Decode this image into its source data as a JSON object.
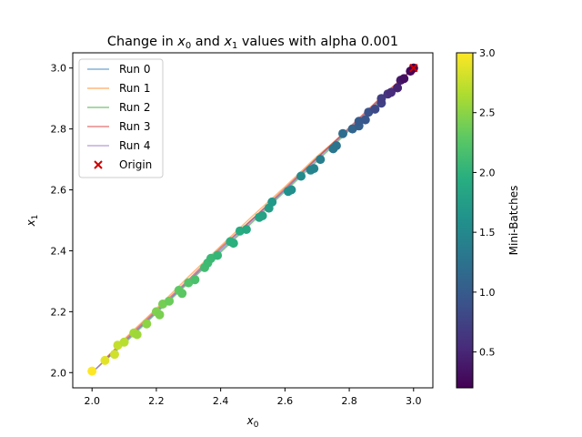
{
  "chart_data": {
    "type": "scatter",
    "title_prefix": "Change in ",
    "title_var1": "x",
    "title_var1_sub": "0",
    "title_mid": " and ",
    "title_var2": "x",
    "title_var2_sub": "1",
    "title_suffix": " values with alpha 0.001",
    "xlabel": "x",
    "xlabel_sub": "0",
    "ylabel": "x",
    "ylabel_sub": "1",
    "xlim": [
      1.94,
      3.06
    ],
    "ylim": [
      1.95,
      3.05
    ],
    "xticks": [
      "2.0",
      "2.2",
      "2.4",
      "2.6",
      "2.8",
      "3.0"
    ],
    "yticks": [
      "2.0",
      "2.2",
      "2.4",
      "2.6",
      "2.8",
      "3.0"
    ],
    "grid": false,
    "legend_position": "top-left",
    "series": [
      {
        "name": "Run 0",
        "color": "#1f77b4",
        "x": [
          3.0,
          2.9,
          2.8,
          2.7,
          2.6,
          2.5,
          2.4,
          2.3,
          2.2,
          2.1,
          2.0
        ],
        "y": [
          3.0,
          2.9,
          2.8,
          2.705,
          2.6,
          2.505,
          2.405,
          2.3,
          2.2,
          2.1,
          2.0
        ]
      },
      {
        "name": "Run 1",
        "color": "#ff7f0e",
        "x": [
          3.0,
          2.9,
          2.8,
          2.7,
          2.6,
          2.5,
          2.4,
          2.3,
          2.2,
          2.1,
          2.02
        ],
        "y": [
          3.0,
          2.905,
          2.8,
          2.71,
          2.61,
          2.515,
          2.415,
          2.315,
          2.21,
          2.11,
          2.02
        ]
      },
      {
        "name": "Run 2",
        "color": "#2ca02c",
        "x": [
          3.0,
          2.9,
          2.8,
          2.7,
          2.6,
          2.5,
          2.4,
          2.3,
          2.2,
          2.1,
          2.03
        ],
        "y": [
          3.0,
          2.895,
          2.795,
          2.695,
          2.595,
          2.495,
          2.395,
          2.295,
          2.195,
          2.095,
          2.03
        ]
      },
      {
        "name": "Run 3",
        "color": "#d62728",
        "x": [
          3.0,
          2.9,
          2.8,
          2.7,
          2.6,
          2.5,
          2.4,
          2.3,
          2.2,
          2.1,
          2.04
        ],
        "y": [
          3.0,
          2.905,
          2.805,
          2.705,
          2.605,
          2.505,
          2.41,
          2.305,
          2.205,
          2.105,
          2.045
        ]
      },
      {
        "name": "Run 4",
        "color": "#9467bd",
        "x": [
          3.0,
          2.9,
          2.8,
          2.7,
          2.6,
          2.5,
          2.4,
          2.3,
          2.2,
          2.1,
          2.01
        ],
        "y": [
          3.0,
          2.9,
          2.8,
          2.7,
          2.6,
          2.5,
          2.4,
          2.3,
          2.2,
          2.1,
          2.01
        ]
      }
    ],
    "scatter_points": [
      [
        2.0,
        2.005,
        3.0
      ],
      [
        2.04,
        2.04,
        2.88
      ],
      [
        2.07,
        2.06,
        2.8
      ],
      [
        2.08,
        2.09,
        2.75
      ],
      [
        2.1,
        2.1,
        2.7
      ],
      [
        2.13,
        2.13,
        2.6
      ],
      [
        2.14,
        2.125,
        2.58
      ],
      [
        2.17,
        2.16,
        2.5
      ],
      [
        2.2,
        2.2,
        2.45
      ],
      [
        2.21,
        2.19,
        2.42
      ],
      [
        2.22,
        2.225,
        2.4
      ],
      [
        2.24,
        2.235,
        2.35
      ],
      [
        2.27,
        2.27,
        2.3
      ],
      [
        2.28,
        2.26,
        2.28
      ],
      [
        2.3,
        2.295,
        2.22
      ],
      [
        2.32,
        2.305,
        2.18
      ],
      [
        2.35,
        2.345,
        2.12
      ],
      [
        2.36,
        2.36,
        2.1
      ],
      [
        2.37,
        2.375,
        2.08
      ],
      [
        2.39,
        2.385,
        2.04
      ],
      [
        2.43,
        2.43,
        1.98
      ],
      [
        2.44,
        2.425,
        1.96
      ],
      [
        2.46,
        2.465,
        1.92
      ],
      [
        2.48,
        2.47,
        1.88
      ],
      [
        2.52,
        2.51,
        1.82
      ],
      [
        2.53,
        2.515,
        1.8
      ],
      [
        2.55,
        2.54,
        1.74
      ],
      [
        2.56,
        2.56,
        1.7
      ],
      [
        2.61,
        2.595,
        1.6
      ],
      [
        2.62,
        2.6,
        1.58
      ],
      [
        2.65,
        2.645,
        1.52
      ],
      [
        2.68,
        2.665,
        1.46
      ],
      [
        2.69,
        2.67,
        1.44
      ],
      [
        2.71,
        2.7,
        1.38
      ],
      [
        2.75,
        2.735,
        1.3
      ],
      [
        2.76,
        2.745,
        1.26
      ],
      [
        2.78,
        2.785,
        1.2
      ],
      [
        2.81,
        2.8,
        1.12
      ],
      [
        2.83,
        2.81,
        1.05
      ],
      [
        2.83,
        2.825,
        1.0
      ],
      [
        2.85,
        2.83,
        0.96
      ],
      [
        2.86,
        2.855,
        0.9
      ],
      [
        2.88,
        2.865,
        0.82
      ],
      [
        2.9,
        2.885,
        0.75
      ],
      [
        2.9,
        2.9,
        0.7
      ],
      [
        2.92,
        2.915,
        0.62
      ],
      [
        2.93,
        2.92,
        0.55
      ],
      [
        2.95,
        2.935,
        0.48
      ],
      [
        2.96,
        2.96,
        0.4
      ],
      [
        2.97,
        2.965,
        0.32
      ],
      [
        2.99,
        2.99,
        0.25
      ],
      [
        3.0,
        3.0,
        0.2
      ]
    ],
    "origin": {
      "name": "Origin",
      "x": 3.0,
      "y": 3.0,
      "color": "#d00000"
    },
    "colorbar": {
      "label": "Mini-Batches",
      "min": 0.2,
      "max": 3.0,
      "colormap": "viridis",
      "ticks": [
        "0.5",
        "1.0",
        "1.5",
        "2.0",
        "2.5",
        "3.0"
      ]
    }
  }
}
